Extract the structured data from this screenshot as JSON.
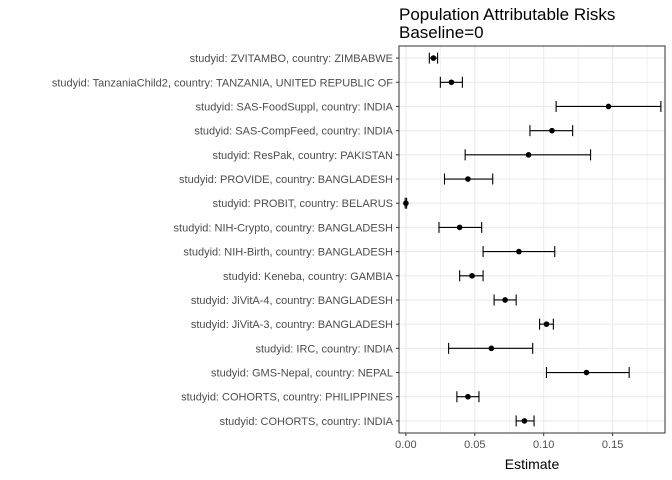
{
  "chart_data": {
    "type": "forest",
    "title": "Population Attributable Risks",
    "subtitle": "Baseline=0",
    "xlabel": "Estimate",
    "ylabel": "",
    "xlim": [
      -0.005,
      0.188
    ],
    "x_ticks": [
      "0.00",
      "0.05",
      "0.10",
      "0.15"
    ],
    "x_tick_values": [
      0,
      0.05,
      0.1,
      0.15
    ],
    "grid": true,
    "theme": "bw",
    "point_color": "#000000",
    "grid_color": "#ebebeb",
    "rows": [
      {
        "label": "studyid: ZVITAMBO, country: ZIMBABWE",
        "estimate": 0.02,
        "lower": 0.017,
        "upper": 0.023
      },
      {
        "label": "studyid: TanzaniaChild2, country: TANZANIA, UNITED REPUBLIC OF",
        "estimate": 0.033,
        "lower": 0.025,
        "upper": 0.041
      },
      {
        "label": "studyid: SAS-FoodSuppl, country: INDIA",
        "estimate": 0.147,
        "lower": 0.109,
        "upper": 0.185
      },
      {
        "label": "studyid: SAS-CompFeed, country: INDIA",
        "estimate": 0.106,
        "lower": 0.09,
        "upper": 0.121
      },
      {
        "label": "studyid: ResPak, country: PAKISTAN",
        "estimate": 0.089,
        "lower": 0.043,
        "upper": 0.134
      },
      {
        "label": "studyid: PROVIDE, country: BANGLADESH",
        "estimate": 0.045,
        "lower": 0.028,
        "upper": 0.063
      },
      {
        "label": "studyid: PROBIT, country: BELARUS",
        "estimate": 0.0,
        "lower": -0.0005,
        "upper": 0.0005
      },
      {
        "label": "studyid: NIH-Crypto, country: BANGLADESH",
        "estimate": 0.039,
        "lower": 0.024,
        "upper": 0.055
      },
      {
        "label": "studyid: NIH-Birth, country: BANGLADESH",
        "estimate": 0.082,
        "lower": 0.056,
        "upper": 0.108
      },
      {
        "label": "studyid: Keneba, country: GAMBIA",
        "estimate": 0.048,
        "lower": 0.039,
        "upper": 0.056
      },
      {
        "label": "studyid: JiVitA-4, country: BANGLADESH",
        "estimate": 0.072,
        "lower": 0.064,
        "upper": 0.08
      },
      {
        "label": "studyid: JiVitA-3, country: BANGLADESH",
        "estimate": 0.102,
        "lower": 0.097,
        "upper": 0.107
      },
      {
        "label": "studyid: IRC, country: INDIA",
        "estimate": 0.062,
        "lower": 0.031,
        "upper": 0.092
      },
      {
        "label": "studyid: GMS-Nepal, country: NEPAL",
        "estimate": 0.131,
        "lower": 0.102,
        "upper": 0.162
      },
      {
        "label": "studyid: COHORTS, country: PHILIPPINES",
        "estimate": 0.045,
        "lower": 0.037,
        "upper": 0.053
      },
      {
        "label": "studyid: COHORTS, country: INDIA",
        "estimate": 0.086,
        "lower": 0.08,
        "upper": 0.093
      }
    ]
  }
}
